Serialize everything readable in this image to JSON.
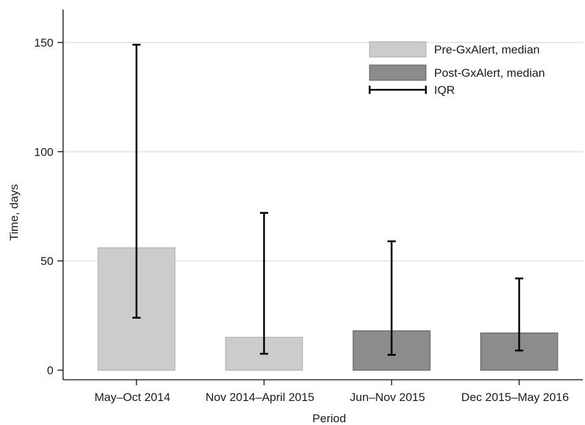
{
  "chart_data": {
    "type": "bar",
    "title": "",
    "xlabel": "Period",
    "ylabel": "Time, days",
    "ylim": [
      0,
      165
    ],
    "yticks": [
      0,
      50,
      100,
      150
    ],
    "grid": true,
    "legend_position": "top-right",
    "categories": [
      "May–Oct 2014",
      "Nov 2014–April 2015",
      "Jun–Nov 2015",
      "Dec 2015–May 2016"
    ],
    "values": [
      56,
      15,
      18,
      17
    ],
    "groups": [
      "Pre-GxAlert, median",
      "Pre-GxAlert, median",
      "Post-GxAlert, median",
      "Post-GxAlert, median"
    ],
    "iqr_low": [
      24,
      7.5,
      7,
      9
    ],
    "iqr_high": [
      149,
      72,
      59,
      42
    ],
    "legend": [
      {
        "label": "Pre-GxAlert, median",
        "kind": "bar",
        "color": "#cccccc",
        "stroke": "#b8b8b8"
      },
      {
        "label": "Post-GxAlert, median",
        "kind": "bar",
        "color": "#8c8c8c",
        "stroke": "#6e6e6e"
      },
      {
        "label": "IQR",
        "kind": "errorbar",
        "color": "#000000"
      }
    ],
    "colors": {
      "pre": "#cccccc",
      "pre_stroke": "#b8b8b8",
      "post": "#8c8c8c",
      "post_stroke": "#6e6e6e",
      "grid": "#e8e8e8",
      "axis": "#000000"
    }
  }
}
